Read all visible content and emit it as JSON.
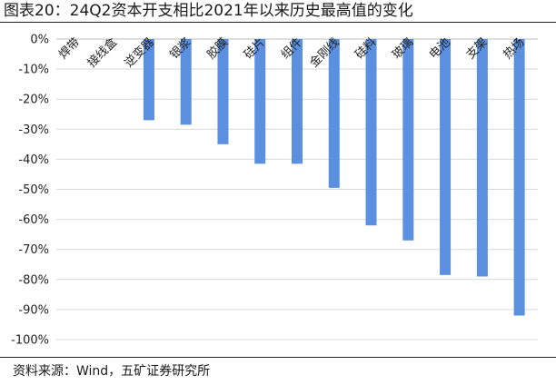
{
  "header": {
    "title": "图表20：24Q2资本开支相比2021年以来历史最高值的变化"
  },
  "footer": {
    "source": "资料来源：Wind，五矿证券研究所"
  },
  "colors": {
    "bar": "#5B8FE0",
    "grid": "#d9d9d9",
    "axis": "#bfbfbf"
  },
  "chart_data": {
    "type": "bar",
    "categories": [
      "焊带",
      "接线盒",
      "逆变器",
      "银浆",
      "胶膜",
      "硅片",
      "组件",
      "金刚线",
      "硅料",
      "玻璃",
      "电池",
      "支架",
      "热场"
    ],
    "values": [
      0,
      0,
      -27,
      -28.5,
      -35,
      -41.5,
      -41.5,
      -49.5,
      -62,
      -67,
      -78.5,
      -79,
      -92
    ],
    "ylim": [
      -100,
      0
    ],
    "yticks": [
      0,
      -10,
      -20,
      -30,
      -40,
      -50,
      -60,
      -70,
      -80,
      -90,
      -100
    ],
    "ytick_labels": [
      "0%",
      "-10%",
      "-20%",
      "-30%",
      "-40%",
      "-50%",
      "-60%",
      "-70%",
      "-80%",
      "-90%",
      "-100%"
    ],
    "grid": true,
    "xlabel": "",
    "ylabel": ""
  }
}
